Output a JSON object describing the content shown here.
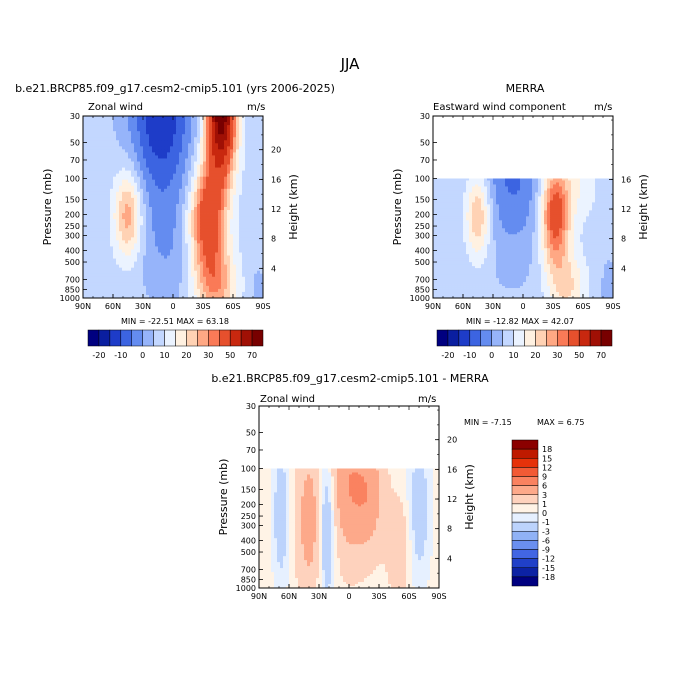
{
  "season": "JJA",
  "chart_data": [
    {
      "type": "heatmap",
      "name": "model",
      "title": "b.e21.BRCP85.f09_g17.cesm2-cmip5.101 (yrs 2006-2025)",
      "subtitle": "Zonal wind",
      "units": "m/s",
      "xlabel": "",
      "ylabel": "Pressure (mb)",
      "ylabel_right": "Height (km)",
      "x_tick_labels": [
        "90N",
        "60N",
        "30N",
        "0",
        "30S",
        "60S",
        "90S"
      ],
      "y_ticks": [
        30,
        50,
        70,
        100,
        150,
        200,
        250,
        300,
        400,
        500,
        700,
        850,
        1000
      ],
      "y_tick_labels": [
        "30",
        "50",
        "70",
        "100",
        "150",
        "200",
        "250",
        "300",
        "400",
        "500",
        "700",
        "850",
        "1000"
      ],
      "height_ticks": [
        4,
        8,
        12,
        16,
        20
      ],
      "height_tick_labels": [
        "4",
        "8",
        "12",
        "16",
        "20"
      ],
      "xlim": [
        90,
        -90
      ],
      "ylim": [
        1000,
        30
      ],
      "min_label": "MIN = -22.51",
      "max_label": "MAX = 63.18",
      "levels": [
        -25,
        -20,
        -15,
        -10,
        -5,
        0,
        5,
        10,
        15,
        20,
        25,
        30,
        40,
        50,
        60,
        70
      ]
    },
    {
      "type": "heatmap",
      "name": "obs",
      "title": "MERRA",
      "subtitle": "Eastward wind component",
      "units": "m/s",
      "xlabel": "",
      "ylabel": "Pressure (mb)",
      "ylabel_right": "Height (km)",
      "x_tick_labels": [
        "90N",
        "60N",
        "30N",
        "0",
        "30S",
        "60S",
        "90S"
      ],
      "y_ticks": [
        30,
        50,
        70,
        100,
        150,
        200,
        250,
        300,
        400,
        500,
        700,
        850,
        1000
      ],
      "y_tick_labels": [
        "30",
        "50",
        "70",
        "100",
        "150",
        "200",
        "250",
        "300",
        "400",
        "500",
        "700",
        "850",
        "1000"
      ],
      "height_ticks": [
        4,
        8,
        12,
        16
      ],
      "height_tick_labels": [
        "4",
        "8",
        "12",
        "16"
      ],
      "xlim": [
        90,
        -90
      ],
      "ylim": [
        1000,
        30
      ],
      "data_top_pressure": 100,
      "min_label": "MIN = -12.82",
      "max_label": "MAX = 42.07",
      "levels": [
        -25,
        -20,
        -15,
        -10,
        -5,
        0,
        5,
        10,
        15,
        20,
        25,
        30,
        40,
        50,
        60,
        70
      ]
    },
    {
      "type": "heatmap",
      "name": "diff",
      "title": "b.e21.BRCP85.f09_g17.cesm2-cmip5.101 - MERRA",
      "subtitle": "Zonal wind",
      "units": "m/s",
      "xlabel": "",
      "ylabel": "Pressure (mb)",
      "ylabel_right": "Height (km)",
      "x_tick_labels": [
        "90N",
        "60N",
        "30N",
        "0",
        "30S",
        "60S",
        "90S"
      ],
      "y_ticks": [
        30,
        50,
        70,
        100,
        150,
        200,
        250,
        300,
        400,
        500,
        700,
        850,
        1000
      ],
      "y_tick_labels": [
        "30",
        "50",
        "70",
        "100",
        "150",
        "200",
        "250",
        "300",
        "400",
        "500",
        "700",
        "850",
        "1000"
      ],
      "height_ticks": [
        4,
        8,
        12,
        16,
        20
      ],
      "height_tick_labels": [
        "4",
        "8",
        "12",
        "16",
        "20"
      ],
      "xlim": [
        90,
        -90
      ],
      "ylim": [
        1000,
        30
      ],
      "data_top_pressure": 100,
      "min_label": "MIN =   -7.15",
      "max_label": "MAX =    6.75",
      "levels": [
        -18,
        -15,
        -12,
        -9,
        -6,
        -3,
        -1,
        0,
        1,
        3,
        6,
        9,
        12,
        15,
        18
      ]
    }
  ],
  "colorbar_main": {
    "tick_labels": [
      "-20",
      "-10",
      "0",
      "10",
      "20",
      "30",
      "50",
      "70"
    ],
    "colors": [
      "#000080",
      "#0a1ea0",
      "#1e3cc8",
      "#3c64e1",
      "#648cf0",
      "#96b4fa",
      "#c3d7ff",
      "#ebf3ff",
      "#fff1e1",
      "#ffd2b4",
      "#ffa884",
      "#fa7a57",
      "#e6502d",
      "#c8280f",
      "#a01005",
      "#780000"
    ]
  },
  "colorbar_diff": {
    "tick_labels": [
      "18",
      "15",
      "12",
      "9",
      "6",
      "3",
      "1",
      "0",
      "-1",
      "-3",
      "-6",
      "-9",
      "-12",
      "-15",
      "-18"
    ],
    "colors": [
      "#8b0000",
      "#bf1a00",
      "#e6320a",
      "#f25a35",
      "#fa8260",
      "#fda98a",
      "#fed2bd",
      "#fff3e6",
      "#e6f0ff",
      "#bcd3fc",
      "#90b2f6",
      "#6a8ff0",
      "#4266e3",
      "#2040c8",
      "#0c22a4",
      "#000080"
    ]
  }
}
